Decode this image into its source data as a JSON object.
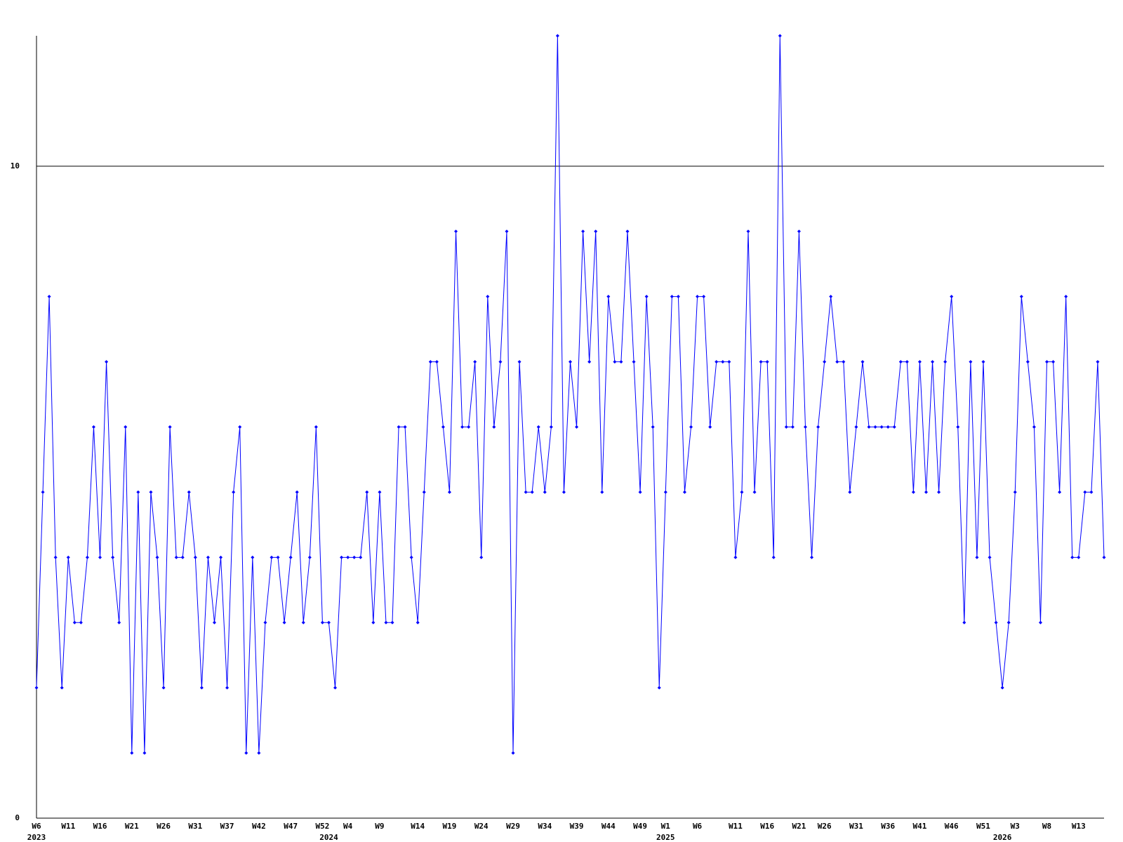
{
  "chart_data": {
    "type": "line",
    "categories": [
      "W6",
      null,
      null,
      null,
      null,
      "W11",
      null,
      null,
      null,
      null,
      "W16",
      null,
      null,
      null,
      null,
      "W21",
      null,
      null,
      null,
      null,
      "W26",
      null,
      null,
      null,
      null,
      "W31",
      null,
      null,
      null,
      null,
      "W37",
      null,
      null,
      null,
      null,
      "W42",
      null,
      null,
      null,
      null,
      "W47",
      null,
      null,
      null,
      null,
      "W52",
      null,
      null,
      null,
      "W4",
      null,
      null,
      null,
      null,
      "W9",
      null,
      null,
      null,
      null,
      null,
      "W14",
      null,
      null,
      null,
      null,
      "W19",
      null,
      null,
      null,
      null,
      "W24",
      null,
      null,
      null,
      null,
      "W29",
      null,
      null,
      null,
      null,
      "W34",
      null,
      null,
      null,
      null,
      "W39",
      null,
      null,
      null,
      null,
      "W44",
      null,
      null,
      null,
      null,
      "W49",
      null,
      null,
      null,
      "W1",
      null,
      null,
      null,
      null,
      "W6",
      null,
      null,
      null,
      null,
      null,
      "W11",
      null,
      null,
      null,
      null,
      "W16",
      null,
      null,
      null,
      null,
      "W21",
      null,
      null,
      null,
      "W26",
      null,
      null,
      null,
      null,
      "W31",
      null,
      null,
      null,
      null,
      "W36",
      null,
      null,
      null,
      null,
      "W41",
      null,
      null,
      null,
      null,
      "W46",
      null,
      null,
      null,
      null,
      "W51",
      null,
      null,
      null,
      null,
      "W3",
      null,
      null,
      null,
      null,
      "W8",
      null,
      null,
      null,
      null,
      "W13",
      null,
      null,
      null,
      null
    ],
    "category_years": [
      "2023",
      null,
      null,
      null,
      null,
      null,
      null,
      null,
      null,
      null,
      null,
      null,
      null,
      null,
      null,
      null,
      null,
      null,
      null,
      null,
      null,
      null,
      null,
      null,
      null,
      null,
      null,
      null,
      null,
      null,
      null,
      null,
      null,
      null,
      null,
      null,
      null,
      null,
      null,
      null,
      null,
      null,
      null,
      null,
      null,
      null,
      "2024",
      null,
      null,
      null,
      null,
      null,
      null,
      null,
      null,
      null,
      null,
      null,
      null,
      null,
      null,
      null,
      null,
      null,
      null,
      null,
      null,
      null,
      null,
      null,
      null,
      null,
      null,
      null,
      null,
      null,
      null,
      null,
      null,
      null,
      null,
      null,
      null,
      null,
      null,
      null,
      null,
      null,
      null,
      null,
      null,
      null,
      null,
      null,
      null,
      null,
      null,
      null,
      null,
      "2025",
      null,
      null,
      null,
      null,
      null,
      null,
      null,
      null,
      null,
      null,
      null,
      null,
      null,
      null,
      null,
      null,
      null,
      null,
      null,
      null,
      null,
      null,
      null,
      null,
      null,
      null,
      null,
      null,
      null,
      null,
      null,
      null,
      null,
      null,
      null,
      null,
      null,
      null,
      null,
      null,
      null,
      null,
      null,
      null,
      null,
      null,
      null,
      null,
      null,
      null,
      null,
      null,
      "2026",
      null,
      null,
      null,
      null,
      null,
      null,
      null,
      null,
      null,
      null,
      null,
      null,
      null,
      null,
      null,
      null
    ],
    "values": [
      2,
      5,
      8,
      4,
      2,
      4,
      3,
      3,
      4,
      6,
      4,
      7,
      4,
      3,
      6,
      1,
      5,
      1,
      5,
      4,
      2,
      6,
      4,
      4,
      5,
      4,
      2,
      4,
      3,
      4,
      2,
      5,
      6,
      1,
      4,
      1,
      3,
      4,
      4,
      3,
      4,
      5,
      3,
      4,
      6,
      3,
      3,
      2,
      4,
      4,
      4,
      4,
      5,
      3,
      5,
      3,
      3,
      6,
      6,
      4,
      3,
      5,
      7,
      7,
      6,
      5,
      9,
      6,
      6,
      7,
      4,
      8,
      6,
      7,
      9,
      1,
      7,
      5,
      5,
      6,
      5,
      6,
      12,
      5,
      7,
      6,
      9,
      7,
      9,
      5,
      8,
      7,
      7,
      9,
      7,
      5,
      8,
      6,
      2,
      5,
      8,
      8,
      5,
      6,
      8,
      8,
      6,
      7,
      7,
      7,
      4,
      5,
      9,
      5,
      7,
      7,
      4,
      12,
      6,
      6,
      9,
      6,
      4,
      6,
      7,
      8,
      7,
      7,
      5,
      6,
      7,
      6,
      6,
      6,
      6,
      6,
      7,
      7,
      5,
      7,
      5,
      7,
      5,
      7,
      8,
      6,
      3,
      7,
      4,
      7,
      4,
      3,
      2,
      3,
      5,
      8,
      7,
      6,
      3,
      7,
      7,
      5,
      8,
      4,
      4,
      5,
      5,
      7,
      4
    ],
    "color": "#0000ff",
    "ylim": [
      0,
      12
    ],
    "yticks": [
      0,
      10
    ],
    "grid": true
  }
}
